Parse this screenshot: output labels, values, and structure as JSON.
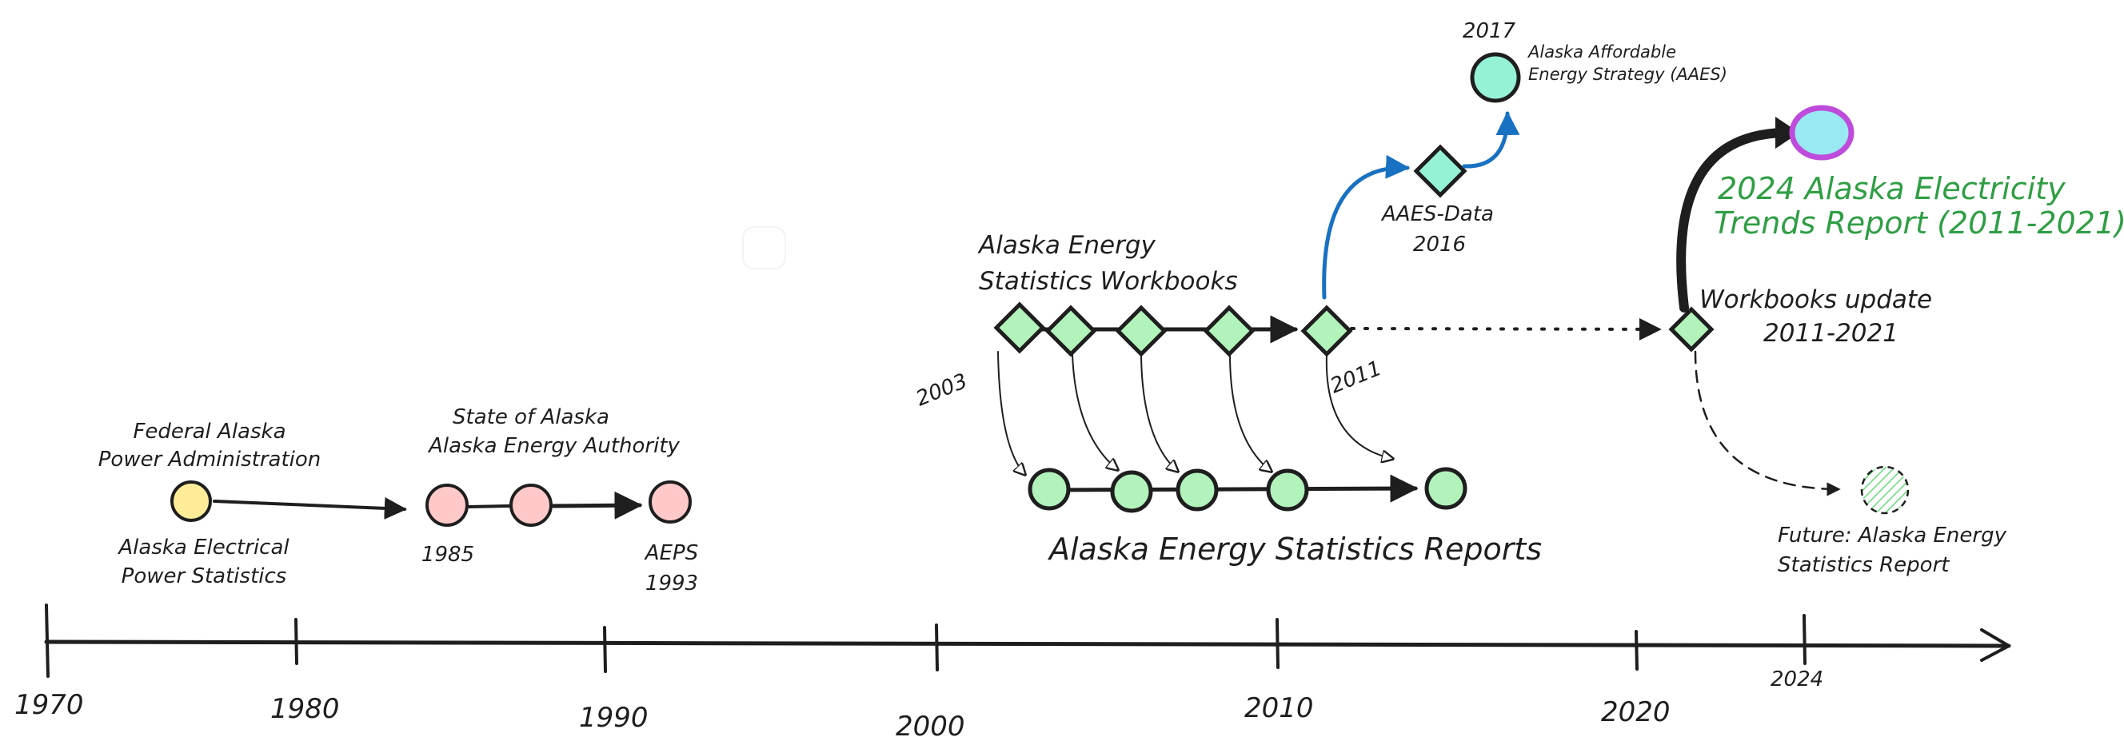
{
  "timeline": {
    "ticks": [
      "1970",
      "1980",
      "1990",
      "2000",
      "2010",
      "2020",
      "2024"
    ]
  },
  "labels": {
    "fapa": "Federal Alaska",
    "fapa2": "Power Administration",
    "aeps_stats": "Alaska Electrical",
    "aeps_stats2": "Power Statistics",
    "state": "State of Alaska",
    "state2": "Alaska Energy Authority",
    "y1985": "1985",
    "aeps": "AEPS",
    "y1993": "1993",
    "workbooks": "Alaska Energy",
    "workbooks2": "Statistics Workbooks",
    "y2003": "2003",
    "y2011": "2011",
    "reports": "Alaska Energy Statistics Reports",
    "aaes_data": "AAES-Data",
    "y2016": "2016",
    "y2017": "2017",
    "aaes": "Alaska Affordable",
    "aaes2": "Energy Strategy (AAES)",
    "trends": "2024 Alaska Electricity",
    "trends2": "Trends Report (2011-2021)",
    "wb_update": "Workbooks update",
    "wb_update2": "2011-2021",
    "future": "Future: Alaska Energy",
    "future2": "Statistics Report"
  },
  "colors": {
    "ink": "#1e1e1e",
    "yellow": "#ffec99",
    "pink": "#ffc9c9",
    "green": "#b2f2bb",
    "teal": "#96f2d7",
    "cyan": "#99e9f2",
    "purple": "#be4bdb",
    "blue": "#1971c2",
    "green_text": "#2f9e44"
  }
}
